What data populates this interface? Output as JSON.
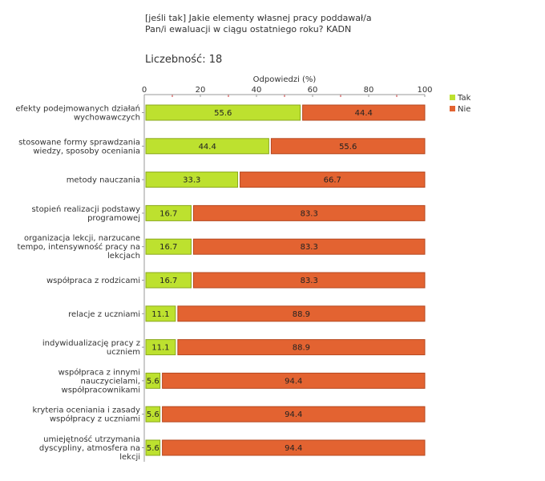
{
  "header": {
    "title_line1": "[jeśli tak]  Jakie elementy własnej pracy poddawał/a",
    "title_line2": "Pan/i ewaluacji w ciągu ostatniego roku? KADN",
    "count_label": "Liczebność:",
    "count_value": "18"
  },
  "chart_data": {
    "type": "bar",
    "orientation": "horizontal",
    "stacked": true,
    "xlabel": "Odpowiedzi (%)",
    "xlim": [
      0,
      100
    ],
    "xticks": [
      0,
      20,
      40,
      60,
      80,
      100
    ],
    "categories": [
      [
        "efekty podejmowanych działań",
        "wychowawczych"
      ],
      [
        "stosowane formy sprawdzania",
        "wiedzy, sposoby oceniania"
      ],
      [
        "metody nauczania"
      ],
      [
        "stopień realizacji podstawy",
        "programowej"
      ],
      [
        "organizacja lekcji, narzucane",
        "tempo, intensywność pracy na",
        "lekcjach"
      ],
      [
        "współpraca z rodzicami"
      ],
      [
        "relacje z uczniami"
      ],
      [
        "indywidualizację pracy z",
        "uczniem"
      ],
      [
        "współpraca z innymi",
        "nauczycielami,",
        "współpracownikami"
      ],
      [
        "kryteria oceniania  i zasady",
        "współpracy z uczniami"
      ],
      [
        "umiejętność utrzymania",
        "dyscypliny, atmosfera na",
        "lekcji"
      ]
    ],
    "series": [
      {
        "name": "Tak",
        "color": "#bde12f",
        "values": [
          55.6,
          44.4,
          33.3,
          16.7,
          16.7,
          16.7,
          11.1,
          11.1,
          5.6,
          5.6,
          5.6
        ]
      },
      {
        "name": "Nie",
        "color": "#e36331",
        "values": [
          44.4,
          55.6,
          66.7,
          83.3,
          83.3,
          83.3,
          88.9,
          88.9,
          94.4,
          94.4,
          94.4
        ]
      }
    ],
    "legend": "top-right"
  }
}
